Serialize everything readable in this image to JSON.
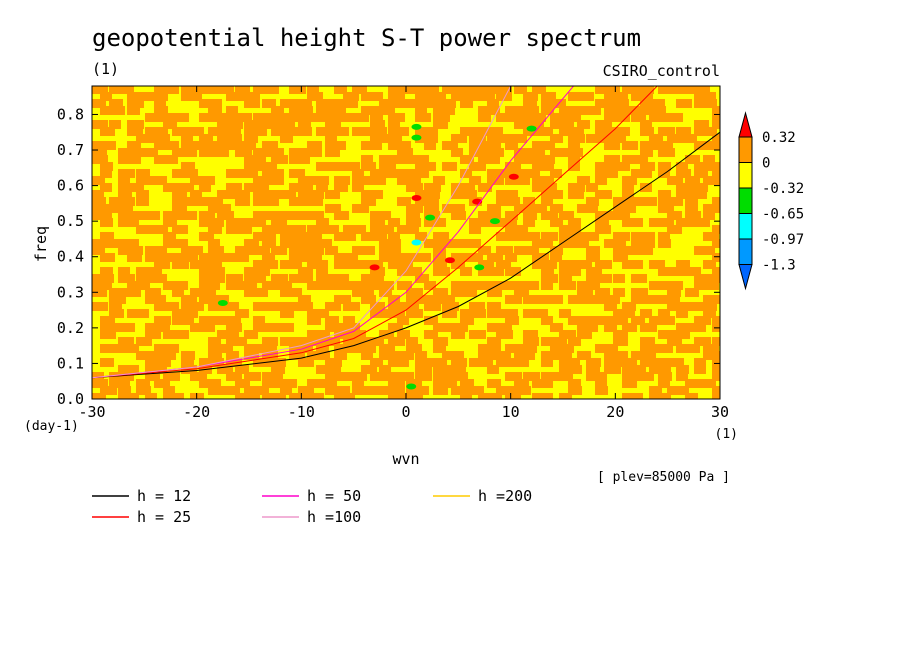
{
  "chart_data": {
    "type": "heatmap",
    "title": "geopotential height S-T power spectrum",
    "subtitle_left": "(1)",
    "subtitle_right": "CSIRO_control",
    "xlabel": "wvn",
    "ylabel": "freq",
    "x_units": "(1)",
    "y_units": "(day-1)",
    "xlim": [
      -30,
      30
    ],
    "ylim": [
      0,
      0.88
    ],
    "x_ticks": [
      -30,
      -20,
      -10,
      0,
      10,
      20,
      30
    ],
    "y_ticks": [
      0.0,
      0.1,
      0.2,
      0.3,
      0.4,
      0.5,
      0.6,
      0.7,
      0.8
    ],
    "annotation": "[ plev=85000 Pa ]",
    "colorbar": {
      "levels": [
        "0.32",
        "0",
        "-0.32",
        "-0.65",
        "-0.97",
        "-1.3"
      ],
      "colors": [
        "#ff0000",
        "#ff9900",
        "#ffff00",
        "#00dd00",
        "#00ffff",
        "#0099ff",
        "#0066ff"
      ],
      "bins": [
        ">0.32",
        "0 to 0.32",
        "-0.32 to 0",
        "-0.65 to -0.32",
        "-0.97 to -0.65",
        "-1.3 to -0.97",
        "<-1.3"
      ]
    },
    "field_description": "noisy background of values between -0.32 and 0.32 (orange/yellow patches) with isolated spots",
    "spots": [
      {
        "x": 1,
        "y": 0.765,
        "level": "-0.65 to -0.32"
      },
      {
        "x": 1,
        "y": 0.735,
        "level": "-0.65 to -0.32"
      },
      {
        "x": 1,
        "y": 0.44,
        "level": "-0.97 to -0.65"
      },
      {
        "x": 2.3,
        "y": 0.51,
        "level": "-0.65 to -0.32"
      },
      {
        "x": 7,
        "y": 0.37,
        "level": "-0.65 to -0.32"
      },
      {
        "x": 8.5,
        "y": 0.5,
        "level": "-0.65 to -0.32"
      },
      {
        "x": -17.5,
        "y": 0.27,
        "level": "-0.65 to -0.32"
      },
      {
        "x": 12,
        "y": 0.76,
        "level": "-0.65 to -0.32"
      },
      {
        "x": 0.5,
        "y": 0.035,
        "level": "-0.65 to -0.32"
      },
      {
        "x": 6.8,
        "y": 0.555,
        "level": ">0.32"
      },
      {
        "x": 10.3,
        "y": 0.625,
        "level": ">0.32"
      },
      {
        "x": 1,
        "y": 0.565,
        "level": ">0.32"
      },
      {
        "x": 4.2,
        "y": 0.39,
        "level": ">0.32"
      },
      {
        "x": -3,
        "y": 0.37,
        "level": ">0.32"
      }
    ],
    "series": [
      {
        "name": "h = 12",
        "color": "#000000",
        "x": [
          -30,
          -20,
          -10,
          -5,
          0,
          5,
          10,
          15,
          20,
          25,
          30
        ],
        "y": [
          0.06,
          0.08,
          0.115,
          0.15,
          0.2,
          0.26,
          0.34,
          0.44,
          0.54,
          0.64,
          0.75
        ]
      },
      {
        "name": "h = 25",
        "color": "#ff0000",
        "x": [
          -30,
          -20,
          -10,
          -5,
          0,
          5,
          10,
          15,
          20,
          24
        ],
        "y": [
          0.06,
          0.085,
          0.13,
          0.17,
          0.25,
          0.37,
          0.5,
          0.63,
          0.76,
          0.88
        ]
      },
      {
        "name": "h = 50",
        "color": "#ff00cc",
        "x": [
          -30,
          -20,
          -10,
          -5,
          0,
          5,
          10,
          16
        ],
        "y": [
          0.06,
          0.09,
          0.14,
          0.19,
          0.3,
          0.47,
          0.67,
          0.88
        ]
      },
      {
        "name": "h =100",
        "color": "#ee99cc",
        "x": [
          -30,
          -20,
          -10,
          -5,
          0,
          5,
          10
        ],
        "y": [
          0.06,
          0.09,
          0.15,
          0.2,
          0.36,
          0.6,
          0.88
        ]
      },
      {
        "name": "h =200",
        "color": "#ffcc00",
        "x": [],
        "y": []
      }
    ]
  }
}
